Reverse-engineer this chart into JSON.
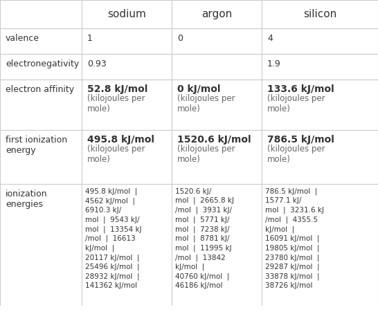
{
  "columns": [
    "",
    "sodium",
    "argon",
    "silicon"
  ],
  "rows": [
    {
      "label": "valence",
      "sodium": "1",
      "argon": "0",
      "silicon": "4"
    },
    {
      "label": "electronegativity",
      "sodium": "0.93",
      "argon": "",
      "silicon": "1.9"
    },
    {
      "label": "electron affinity",
      "sodium": "52.8 kJ/mol\n(kilojoules per\nmole)",
      "argon": "0 kJ/mol\n(kilojoules per\nmole)",
      "silicon": "133.6 kJ/mol\n(kilojoules per\nmole)"
    },
    {
      "label": "first ionization\nenergy",
      "sodium": "495.8 kJ/mol\n(kilojoules per\nmole)",
      "argon": "1520.6 kJ/mol\n(kilojoules per\nmole)",
      "silicon": "786.5 kJ/mol\n(kilojoules per\nmole)"
    },
    {
      "label": "ionization\nenergies",
      "sodium": "495.8 kJ/mol  |\n4562 kJ/mol  |\n6910.3 kJ/\nmol  |  9543 kJ/\nmol  |  13354 kJ\n/mol  |  16613\nkJ/mol  |\n20117 kJ/mol  |\n25496 kJ/mol  |\n28932 kJ/mol  |\n141362 kJ/mol",
      "argon": "1520.6 kJ/\nmol  |  2665.8 kJ\n/mol  |  3931 kJ/\nmol  |  5771 kJ/\nmol  |  7238 kJ/\nmol  |  8781 kJ/\nmol  |  11995 kJ\n/mol  |  13842\nkJ/mol  |\n40760 kJ/mol  |\n46186 kJ/mol",
      "silicon": "786.5 kJ/mol  |\n1577.1 kJ/\nmol  |  3231.6 kJ\n/mol  |  4355.5\nkJ/mol  |\n16091 kJ/mol  |\n19805 kJ/mol  |\n23780 kJ/mol  |\n29287 kJ/mol  |\n33878 kJ/mol  |\n38726 kJ/mol"
    }
  ],
  "header_bg": "#ffffff",
  "cell_bg": "#ffffff",
  "border_color": "#cccccc",
  "text_color": "#333333",
  "header_fontsize": 11,
  "cell_fontsize": 9,
  "label_fontsize": 9,
  "bold_value_fontsize": 10
}
